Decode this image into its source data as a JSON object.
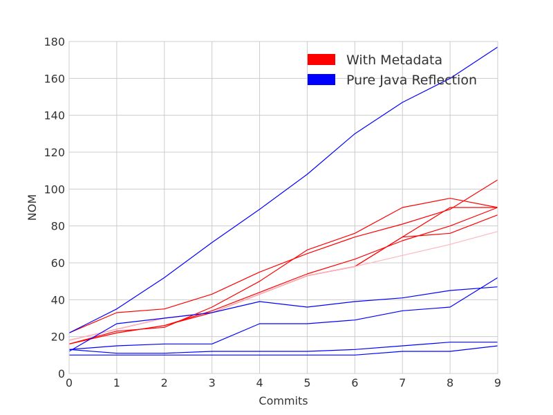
{
  "chart_data": {
    "type": "line",
    "xlabel": "Commits",
    "ylabel": "NOM",
    "xlim": [
      0,
      9
    ],
    "ylim": [
      0,
      180
    ],
    "xticks": [
      0,
      1,
      2,
      3,
      4,
      5,
      6,
      7,
      8,
      9
    ],
    "yticks": [
      0,
      20,
      40,
      60,
      80,
      100,
      120,
      140,
      160,
      180
    ],
    "grid": true,
    "legend": {
      "position": "top-right",
      "entries": [
        {
          "label": "With Metadata",
          "color": "#ff0000"
        },
        {
          "label": "Pure Java Reflection",
          "color": "#0000ff"
        }
      ]
    },
    "x": [
      0,
      1,
      2,
      3,
      4,
      5,
      6,
      7,
      8,
      9
    ],
    "series": [
      {
        "group": "With Metadata",
        "color": "#ff0000",
        "values": [
          22,
          33,
          35,
          43,
          55,
          65,
          74,
          81,
          89,
          105
        ]
      },
      {
        "group": "With Metadata",
        "color": "#ff0000",
        "values": [
          16,
          23,
          25,
          36,
          50,
          67,
          76,
          90,
          95,
          90
        ]
      },
      {
        "group": "With Metadata",
        "color": "#ff0000",
        "values": [
          16,
          22,
          26,
          34,
          44,
          54,
          62,
          72,
          80,
          90
        ]
      },
      {
        "group": "With Metadata",
        "color": "#ff0000",
        "values": [
          18,
          24,
          30,
          33,
          43,
          53,
          58,
          74,
          76,
          86
        ]
      },
      {
        "group": "With Metadata",
        "color": "#ff0000",
        "values": [
          16,
          22,
          26,
          33,
          43,
          53,
          58,
          74,
          90,
          90
        ]
      },
      {
        "group": "With Metadata",
        "color": "#ffb6c1",
        "values": [
          18,
          24,
          30,
          33,
          43,
          53,
          58,
          64,
          70,
          77
        ]
      },
      {
        "group": "Pure Java Reflection",
        "color": "#0000ff",
        "values": [
          22,
          35,
          52,
          71,
          89,
          108,
          130,
          147,
          160,
          177
        ]
      },
      {
        "group": "Pure Java Reflection",
        "color": "#0000ff",
        "values": [
          12,
          27,
          30,
          33,
          39,
          36,
          39,
          41,
          45,
          47
        ]
      },
      {
        "group": "Pure Java Reflection",
        "color": "#0000ff",
        "values": [
          13,
          15,
          16,
          16,
          27,
          27,
          29,
          34,
          36,
          52
        ]
      },
      {
        "group": "Pure Java Reflection",
        "color": "#0000ff",
        "values": [
          13,
          11,
          11,
          12,
          12,
          12,
          13,
          15,
          17,
          17
        ]
      },
      {
        "group": "Pure Java Reflection",
        "color": "#0000ff",
        "values": [
          10,
          10,
          10,
          10,
          10,
          10,
          10,
          12,
          12,
          15
        ]
      }
    ]
  }
}
